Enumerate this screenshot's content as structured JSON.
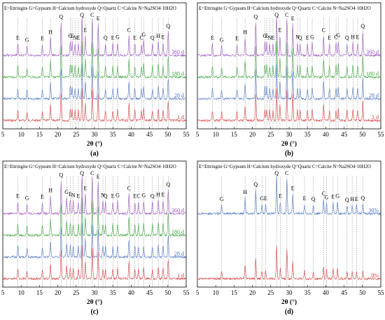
{
  "chart_data": [
    {
      "type": "line",
      "panel_label": "(a)",
      "legend_text": "E=Ettringite G=Gypsum H=Calcium hydroxyde Q=Quartz C=Calcite N=Na2SO4·10H2O",
      "xlabel": "2θ (°)",
      "ylabel": "",
      "xlim": [
        5,
        55
      ],
      "xticks": [
        5,
        10,
        15,
        20,
        25,
        30,
        35,
        40,
        45,
        50,
        55
      ],
      "grid": false,
      "series": [
        {
          "name": "1 d",
          "color": "#d9383a"
        },
        {
          "name": "28 d",
          "color": "#4a72c4"
        },
        {
          "name": "180 d",
          "color": "#3aa43a"
        },
        {
          "name": "360 d",
          "color": "#9a50c2"
        }
      ],
      "peaks": [
        {
          "label": "E",
          "x": 9.1,
          "h": 0.3
        },
        {
          "label": "G",
          "x": 11.6,
          "h": 0.25
        },
        {
          "label": "E",
          "x": 15.8,
          "h": 0.28
        },
        {
          "label": "H",
          "x": 18.0,
          "h": 0.45
        },
        {
          "label": "Q",
          "x": 20.9,
          "h": 0.85
        },
        {
          "label": "G",
          "x": 23.4,
          "h": 0.35
        },
        {
          "label": "E",
          "x": 23.9,
          "h": 0.35
        },
        {
          "label": "N",
          "x": 24.7,
          "h": 0.3
        },
        {
          "label": "E",
          "x": 25.6,
          "h": 0.3
        },
        {
          "label": "Q",
          "x": 26.6,
          "h": 1.0
        },
        {
          "label": "E",
          "x": 27.5,
          "h": 0.5
        },
        {
          "label": "C",
          "x": 29.4,
          "h": 0.95
        },
        {
          "label": "E",
          "x": 31.0,
          "h": 0.8
        },
        {
          "label": "Q",
          "x": 33.0,
          "h": 0.3
        },
        {
          "label": "E",
          "x": 35.0,
          "h": 0.3
        },
        {
          "label": "G",
          "x": 36.3,
          "h": 0.32
        },
        {
          "label": "C",
          "x": 39.4,
          "h": 0.5
        },
        {
          "label": "E",
          "x": 41.0,
          "h": 0.3
        },
        {
          "label": "C",
          "x": 42.8,
          "h": 0.3
        },
        {
          "label": "G",
          "x": 43.4,
          "h": 0.38
        },
        {
          "label": "Q",
          "x": 45.8,
          "h": 0.3
        },
        {
          "label": "H",
          "x": 47.4,
          "h": 0.35
        },
        {
          "label": "E",
          "x": 48.7,
          "h": 0.32
        },
        {
          "label": "Q",
          "x": 50.1,
          "h": 0.6
        }
      ]
    },
    {
      "type": "line",
      "panel_label": "(b)",
      "legend_text": "E=Ettringite G=Gypsum H=Calcium hydroxyde Q=Quartz C=Calcite N=Na2SO4·10H2O",
      "xlabel": "2θ (°)",
      "ylabel": "",
      "xlim": [
        5,
        55
      ],
      "xticks": [
        5,
        10,
        15,
        20,
        25,
        30,
        35,
        40,
        45,
        50,
        55
      ],
      "grid": false,
      "series": [
        {
          "name": "1 d",
          "color": "#d9383a"
        },
        {
          "name": "28 d",
          "color": "#4a72c4"
        },
        {
          "name": "180 d",
          "color": "#3aa43a"
        },
        {
          "name": "360 d",
          "color": "#9a50c2"
        }
      ],
      "peaks": [
        {
          "label": "E",
          "x": 9.1,
          "h": 0.3
        },
        {
          "label": "G",
          "x": 11.6,
          "h": 0.25
        },
        {
          "label": "E",
          "x": 15.8,
          "h": 0.28
        },
        {
          "label": "H",
          "x": 18.0,
          "h": 0.45
        },
        {
          "label": "Q",
          "x": 20.9,
          "h": 0.85
        },
        {
          "label": "G",
          "x": 23.4,
          "h": 0.35
        },
        {
          "label": "E",
          "x": 23.9,
          "h": 0.35
        },
        {
          "label": "N",
          "x": 24.7,
          "h": 0.3
        },
        {
          "label": "E",
          "x": 25.6,
          "h": 0.3
        },
        {
          "label": "Q",
          "x": 26.6,
          "h": 1.0
        },
        {
          "label": "E",
          "x": 27.5,
          "h": 0.5
        },
        {
          "label": "C",
          "x": 29.4,
          "h": 0.95
        },
        {
          "label": "E",
          "x": 31.0,
          "h": 0.8
        },
        {
          "label": "N",
          "x": 32.3,
          "h": 0.32
        },
        {
          "label": "Q",
          "x": 33.0,
          "h": 0.3
        },
        {
          "label": "E",
          "x": 35.0,
          "h": 0.3
        },
        {
          "label": "G",
          "x": 36.3,
          "h": 0.32
        },
        {
          "label": "C",
          "x": 39.4,
          "h": 0.5
        },
        {
          "label": "E",
          "x": 41.0,
          "h": 0.3
        },
        {
          "label": "C",
          "x": 42.8,
          "h": 0.32
        },
        {
          "label": "G",
          "x": 43.4,
          "h": 0.36
        },
        {
          "label": "Q",
          "x": 45.8,
          "h": 0.3
        },
        {
          "label": "H",
          "x": 47.4,
          "h": 0.32
        },
        {
          "label": "E",
          "x": 48.7,
          "h": 0.32
        },
        {
          "label": "Q",
          "x": 50.1,
          "h": 0.6
        }
      ]
    },
    {
      "type": "line",
      "panel_label": "(c)",
      "legend_text": "E=Ettringite G=Gypsum H=Calcium hydroxyde Q=Quartz C=Calcite N=Na2SO4·10H2O",
      "xlabel": "2θ (°)",
      "ylabel": "",
      "xlim": [
        5,
        55
      ],
      "xticks": [
        5,
        10,
        15,
        20,
        25,
        30,
        35,
        40,
        45,
        50,
        55
      ],
      "grid": false,
      "series": [
        {
          "name": "1 d",
          "color": "#d9383a"
        },
        {
          "name": "28 d",
          "color": "#4a72c4"
        },
        {
          "name": "180 d",
          "color": "#3aa43a"
        },
        {
          "name": "360 d",
          "color": "#9a50c2"
        }
      ],
      "peaks": [
        {
          "label": "E",
          "x": 9.1,
          "h": 0.3
        },
        {
          "label": "G",
          "x": 11.6,
          "h": 0.25
        },
        {
          "label": "E",
          "x": 15.8,
          "h": 0.28
        },
        {
          "label": "H",
          "x": 18.0,
          "h": 0.45
        },
        {
          "label": "Q",
          "x": 20.9,
          "h": 0.85
        },
        {
          "label": "G",
          "x": 22.4,
          "h": 0.4
        },
        {
          "label": "E",
          "x": 23.4,
          "h": 0.35
        },
        {
          "label": "N",
          "x": 24.2,
          "h": 0.32
        },
        {
          "label": "E",
          "x": 25.6,
          "h": 0.3
        },
        {
          "label": "Q",
          "x": 26.6,
          "h": 1.0
        },
        {
          "label": "E",
          "x": 27.5,
          "h": 0.5
        },
        {
          "label": "C",
          "x": 29.4,
          "h": 0.95
        },
        {
          "label": "E",
          "x": 31.0,
          "h": 0.8
        },
        {
          "label": "N",
          "x": 32.3,
          "h": 0.32
        },
        {
          "label": "Q",
          "x": 33.0,
          "h": 0.3
        },
        {
          "label": "E",
          "x": 35.0,
          "h": 0.3
        },
        {
          "label": "G",
          "x": 36.3,
          "h": 0.32
        },
        {
          "label": "C",
          "x": 39.4,
          "h": 0.5
        },
        {
          "label": "E",
          "x": 41.0,
          "h": 0.3
        },
        {
          "label": "C",
          "x": 42.0,
          "h": 0.3
        },
        {
          "label": "G",
          "x": 43.4,
          "h": 0.32
        },
        {
          "label": "Q",
          "x": 45.8,
          "h": 0.3
        },
        {
          "label": "H",
          "x": 47.4,
          "h": 0.34
        },
        {
          "label": "E",
          "x": 48.7,
          "h": 0.34
        },
        {
          "label": "Q",
          "x": 50.1,
          "h": 0.6
        }
      ]
    },
    {
      "type": "line",
      "panel_label": "(d)",
      "legend_text": "E=Ettringite G=Gypsum H=Calcium hydroxyde Q=Quartz C=Calcite N=Na2SO4·10H2O",
      "xlabel": "2θ (°)",
      "ylabel": "",
      "xlim": [
        5,
        55
      ],
      "xticks": [
        5,
        10,
        15,
        20,
        25,
        30,
        35,
        40,
        45,
        50,
        55
      ],
      "grid": false,
      "series": [
        {
          "name": "0%",
          "color": "#d9383a"
        },
        {
          "name": "30%",
          "color": "#4a72c4"
        }
      ],
      "peaks": [
        {
          "label": "G",
          "x": 11.6,
          "h": 0.22
        },
        {
          "label": "H",
          "x": 18.0,
          "h": 0.4
        },
        {
          "label": "Q",
          "x": 20.9,
          "h": 0.6
        },
        {
          "label": "G",
          "x": 22.6,
          "h": 0.24
        },
        {
          "label": "E",
          "x": 23.6,
          "h": 0.24
        },
        {
          "label": "Q",
          "x": 26.6,
          "h": 1.0
        },
        {
          "label": "E",
          "x": 27.6,
          "h": 0.3
        },
        {
          "label": "C",
          "x": 29.4,
          "h": 0.9
        },
        {
          "label": "E",
          "x": 31.0,
          "h": 0.5
        },
        {
          "label": "E",
          "x": 34.2,
          "h": 0.24
        },
        {
          "label": "Q",
          "x": 36.6,
          "h": 0.22
        },
        {
          "label": "C",
          "x": 39.4,
          "h": 0.36
        },
        {
          "label": "G",
          "x": 40.2,
          "h": 0.26
        },
        {
          "label": "E",
          "x": 42.0,
          "h": 0.28
        },
        {
          "label": "G",
          "x": 43.2,
          "h": 0.3
        },
        {
          "label": "Q",
          "x": 45.8,
          "h": 0.2
        },
        {
          "label": "H",
          "x": 47.2,
          "h": 0.22
        },
        {
          "label": "E",
          "x": 48.4,
          "h": 0.22
        },
        {
          "label": "Q",
          "x": 50.1,
          "h": 0.25
        }
      ]
    }
  ]
}
